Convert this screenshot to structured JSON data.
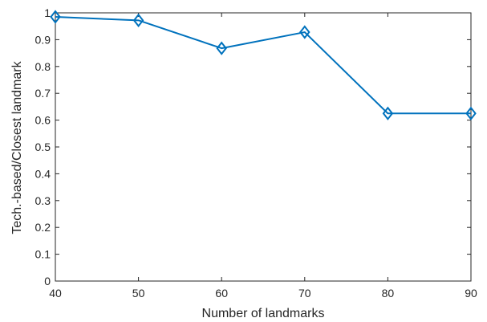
{
  "chart_data": {
    "type": "line",
    "title": "",
    "xlabel": "Number of landmarks",
    "ylabel": "Tech.-based/Closest landmark",
    "xlim": [
      40,
      90
    ],
    "ylim": [
      0,
      1
    ],
    "x_ticks": [
      40,
      50,
      60,
      70,
      80,
      90
    ],
    "y_ticks": [
      0,
      0.1,
      0.2,
      0.3,
      0.4,
      0.5,
      0.6,
      0.7,
      0.8,
      0.9,
      1
    ],
    "x_tick_labels": [
      "40",
      "50",
      "60",
      "70",
      "80",
      "90"
    ],
    "y_tick_labels": [
      "0",
      "0.1",
      "0.2",
      "0.3",
      "0.4",
      "0.5",
      "0.6",
      "0.7",
      "0.8",
      "0.9",
      "1"
    ],
    "grid": false,
    "legend": null,
    "series": [
      {
        "x": [
          40,
          50,
          60,
          70,
          80,
          90
        ],
        "values": [
          0.985,
          0.972,
          0.868,
          0.928,
          0.625,
          0.625
        ],
        "color": "#0072BD",
        "marker": "diamond"
      }
    ]
  }
}
